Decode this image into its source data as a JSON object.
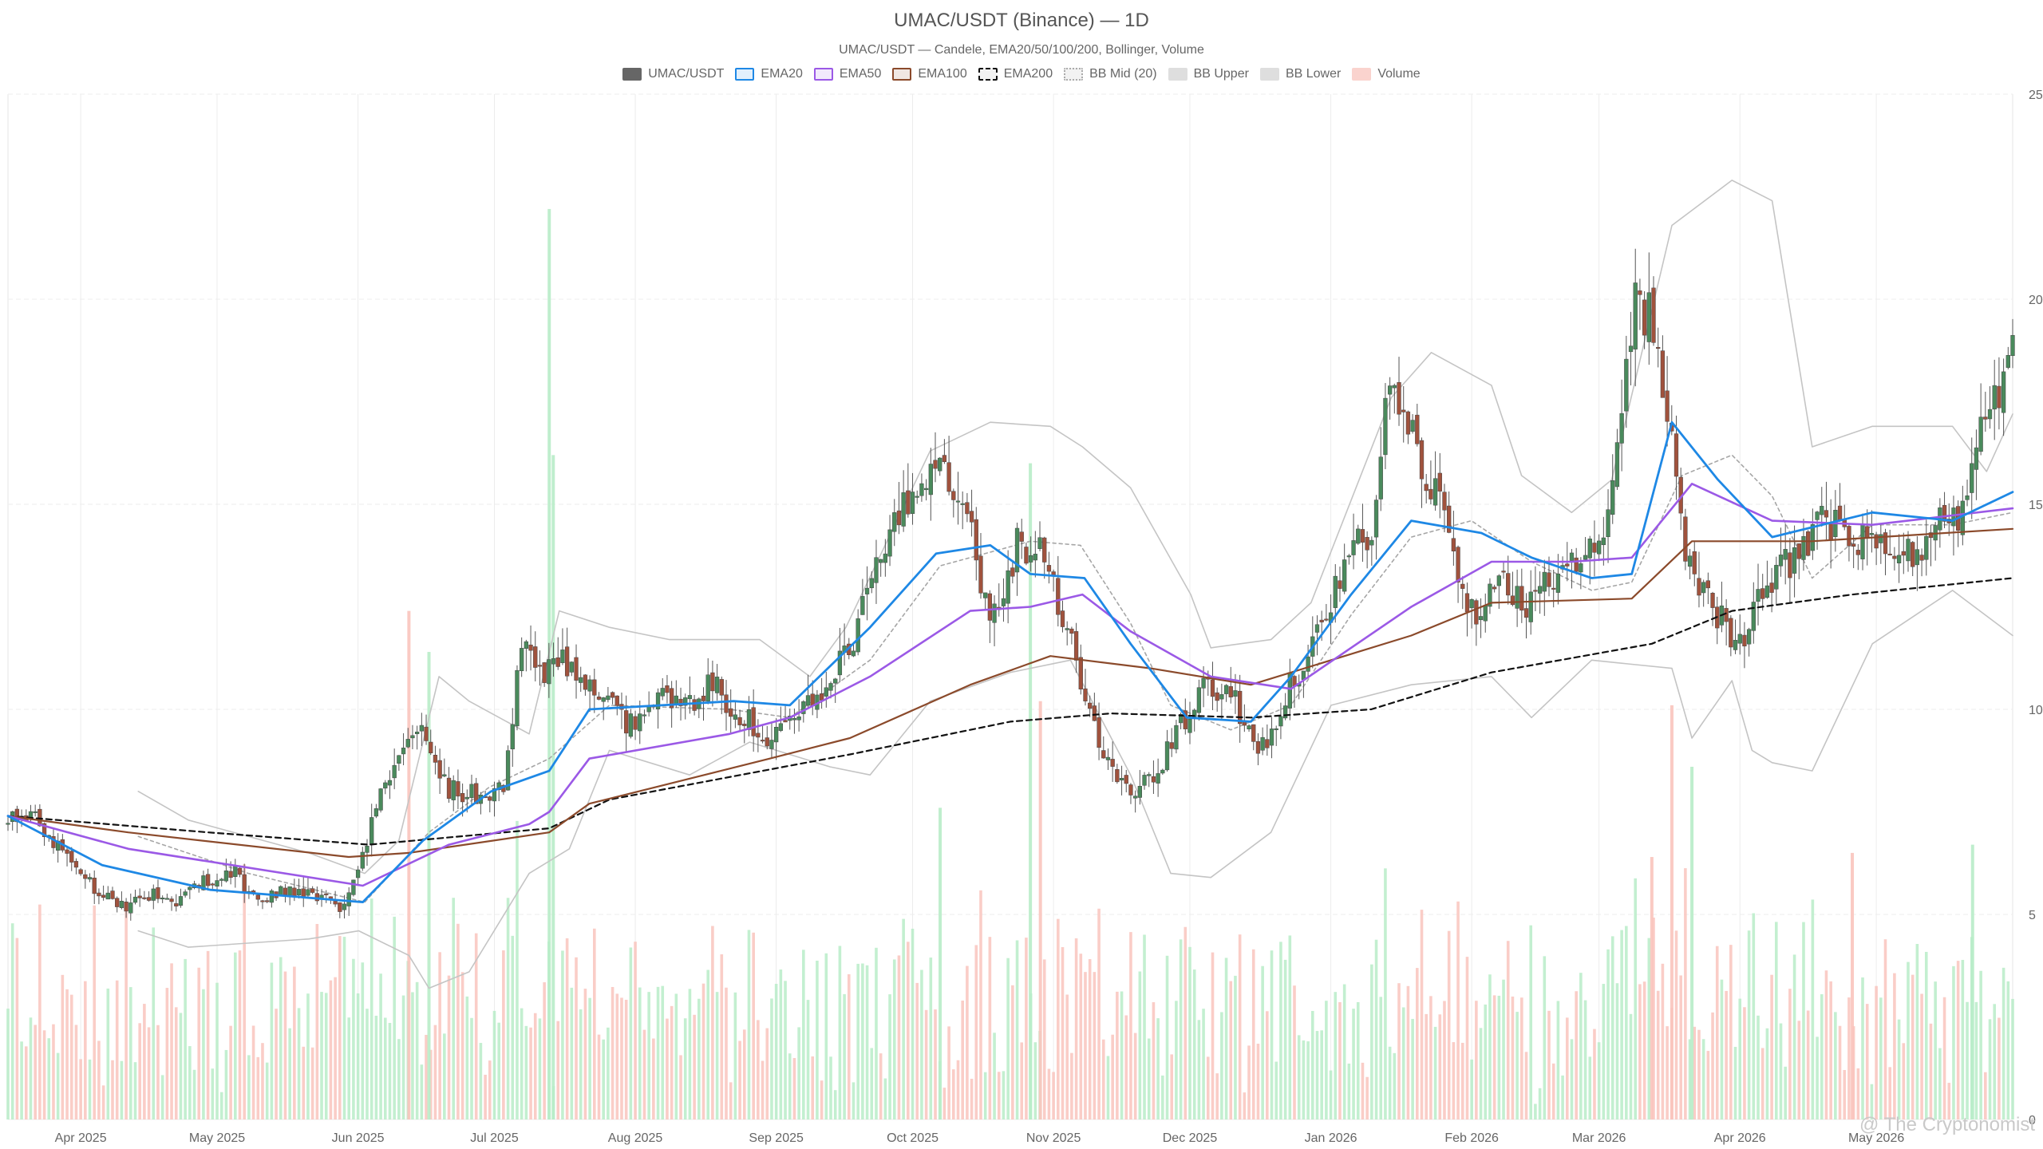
{
  "chart_data": {
    "type": "candlestick",
    "title": "UMAC/USDT (Binance) — 1D",
    "subtitle": "UMAC/USDT — Candele, EMA20/50/100/200, Bollinger, Volume",
    "legend": [
      {
        "label": "UMAC/USDT",
        "color": "#666666",
        "style": "fill"
      },
      {
        "label": "EMA20",
        "color": "#1e88e5",
        "style": "line"
      },
      {
        "label": "EMA50",
        "color": "#9b59e6",
        "style": "line"
      },
      {
        "label": "EMA100",
        "color": "#8b4a2b",
        "style": "line"
      },
      {
        "label": "EMA200",
        "color": "#111111",
        "style": "dashed"
      },
      {
        "label": "BB Mid (20)",
        "color": "#aaaaaa",
        "style": "dotted"
      },
      {
        "label": "BB Upper",
        "color": "#c8c8c8",
        "style": "fill"
      },
      {
        "label": "BB Lower",
        "color": "#c8c8c8",
        "style": "fill"
      },
      {
        "label": "Volume",
        "color": "#f6b5ad",
        "style": "fill"
      }
    ],
    "x_range": [
      "2025-03-16",
      "2026-05-31"
    ],
    "x_ticks": [
      "Apr 2025",
      "May 2025",
      "Jun 2025",
      "Jul 2025",
      "Aug 2025",
      "Sep 2025",
      "Oct 2025",
      "Nov 2025",
      "Dec 2025",
      "Jan 2026",
      "Feb 2026",
      "Mar 2026",
      "Apr 2026",
      "May 2026"
    ],
    "x_tick_dates": [
      "2025-04-01",
      "2025-05-01",
      "2025-06-01",
      "2025-07-01",
      "2025-08-01",
      "2025-09-01",
      "2025-10-01",
      "2025-11-01",
      "2025-12-01",
      "2026-01-01",
      "2026-02-01",
      "2026-03-01",
      "2026-04-01",
      "2026-05-01"
    ],
    "y_axis": {
      "position": "right",
      "ylim": [
        0,
        25
      ],
      "ticks": [
        0,
        5,
        10,
        15,
        20,
        25
      ]
    },
    "grid": true,
    "legend_position": "top-center",
    "colors": {
      "up": "#4a8a5c",
      "down": "#a0523d",
      "volume_up": "#b8ecc8",
      "volume_down": "#f9c4bd",
      "bb": "#bdbdbd"
    },
    "price_path": [
      [
        "2025-03-16",
        7.4
      ],
      [
        "2025-03-22",
        7.3
      ],
      [
        "2025-03-28",
        6.6
      ],
      [
        "2025-04-04",
        5.7
      ],
      [
        "2025-04-10",
        5.2
      ],
      [
        "2025-04-16",
        5.5
      ],
      [
        "2025-04-22",
        5.3
      ],
      [
        "2025-04-28",
        5.8
      ],
      [
        "2025-05-04",
        6.1
      ],
      [
        "2025-05-10",
        5.3
      ],
      [
        "2025-05-16",
        5.6
      ],
      [
        "2025-05-22",
        5.5
      ],
      [
        "2025-05-28",
        5.1
      ],
      [
        "2025-06-03",
        6.9
      ],
      [
        "2025-06-09",
        8.8
      ],
      [
        "2025-06-15",
        9.4
      ],
      [
        "2025-06-21",
        8.1
      ],
      [
        "2025-06-27",
        7.9
      ],
      [
        "2025-07-03",
        8.2
      ],
      [
        "2025-07-07",
        11.6
      ],
      [
        "2025-07-12",
        11.0
      ],
      [
        "2025-07-18",
        11.2
      ],
      [
        "2025-07-24",
        10.3
      ],
      [
        "2025-07-30",
        9.6
      ],
      [
        "2025-08-06",
        10.4
      ],
      [
        "2025-08-12",
        10.0
      ],
      [
        "2025-08-18",
        10.6
      ],
      [
        "2025-08-25",
        9.8
      ],
      [
        "2025-08-31",
        9.2
      ],
      [
        "2025-09-06",
        9.9
      ],
      [
        "2025-09-12",
        10.3
      ],
      [
        "2025-09-18",
        11.8
      ],
      [
        "2025-09-24",
        13.7
      ],
      [
        "2025-09-30",
        15.0
      ],
      [
        "2025-10-06",
        16.3
      ],
      [
        "2025-10-12",
        15.3
      ],
      [
        "2025-10-18",
        12.1
      ],
      [
        "2025-10-24",
        14.0
      ],
      [
        "2025-10-30",
        13.9
      ],
      [
        "2025-11-05",
        11.6
      ],
      [
        "2025-11-11",
        9.1
      ],
      [
        "2025-11-17",
        8.0
      ],
      [
        "2025-11-23",
        8.3
      ],
      [
        "2025-11-29",
        9.6
      ],
      [
        "2025-12-05",
        10.6
      ],
      [
        "2025-12-11",
        10.2
      ],
      [
        "2025-12-17",
        9.0
      ],
      [
        "2025-12-23",
        10.6
      ],
      [
        "2025-12-29",
        11.8
      ],
      [
        "2026-01-04",
        13.6
      ],
      [
        "2026-01-10",
        14.3
      ],
      [
        "2026-01-14",
        18.0
      ],
      [
        "2026-01-20",
        16.3
      ],
      [
        "2026-01-26",
        14.8
      ],
      [
        "2026-02-01",
        12.3
      ],
      [
        "2026-02-07",
        13.5
      ],
      [
        "2026-02-13",
        12.3
      ],
      [
        "2026-02-19",
        13.4
      ],
      [
        "2026-02-25",
        13.5
      ],
      [
        "2026-03-03",
        14.4
      ],
      [
        "2026-03-09",
        20.2
      ],
      [
        "2026-03-14",
        19.1
      ],
      [
        "2026-03-20",
        13.8
      ],
      [
        "2026-03-26",
        12.6
      ],
      [
        "2026-04-01",
        11.5
      ],
      [
        "2026-04-07",
        13.0
      ],
      [
        "2026-04-13",
        13.8
      ],
      [
        "2026-04-19",
        14.6
      ],
      [
        "2026-04-25",
        14.2
      ],
      [
        "2026-05-01",
        14.0
      ],
      [
        "2026-05-07",
        13.6
      ],
      [
        "2026-05-13",
        14.3
      ],
      [
        "2026-05-19",
        14.8
      ],
      [
        "2026-05-25",
        17.0
      ],
      [
        "2026-05-31",
        18.8
      ]
    ],
    "ema20": [
      [
        0,
        7.4
      ],
      [
        0.047,
        6.2
      ],
      [
        0.101,
        5.6
      ],
      [
        0.177,
        5.3
      ],
      [
        0.207,
        6.8
      ],
      [
        0.241,
        8.0
      ],
      [
        0.27,
        8.5
      ],
      [
        0.29,
        10.0
      ],
      [
        0.362,
        10.2
      ],
      [
        0.39,
        10.1
      ],
      [
        0.43,
        12.0
      ],
      [
        0.463,
        13.8
      ],
      [
        0.49,
        14.0
      ],
      [
        0.51,
        13.3
      ],
      [
        0.537,
        13.2
      ],
      [
        0.56,
        11.6
      ],
      [
        0.588,
        9.8
      ],
      [
        0.62,
        9.7
      ],
      [
        0.64,
        10.8
      ],
      [
        0.67,
        12.8
      ],
      [
        0.7,
        14.6
      ],
      [
        0.735,
        14.3
      ],
      [
        0.76,
        13.7
      ],
      [
        0.79,
        13.2
      ],
      [
        0.81,
        13.3
      ],
      [
        0.83,
        17.0
      ],
      [
        0.853,
        15.6
      ],
      [
        0.88,
        14.2
      ],
      [
        0.93,
        14.8
      ],
      [
        0.97,
        14.6
      ],
      [
        1.0,
        15.3
      ]
    ],
    "ema50": [
      [
        0,
        7.4
      ],
      [
        0.06,
        6.6
      ],
      [
        0.177,
        5.7
      ],
      [
        0.22,
        6.7
      ],
      [
        0.26,
        7.2
      ],
      [
        0.27,
        7.5
      ],
      [
        0.29,
        8.8
      ],
      [
        0.36,
        9.4
      ],
      [
        0.39,
        9.8
      ],
      [
        0.43,
        10.8
      ],
      [
        0.48,
        12.4
      ],
      [
        0.51,
        12.5
      ],
      [
        0.536,
        12.8
      ],
      [
        0.56,
        11.9
      ],
      [
        0.6,
        10.8
      ],
      [
        0.64,
        10.5
      ],
      [
        0.7,
        12.5
      ],
      [
        0.74,
        13.6
      ],
      [
        0.78,
        13.6
      ],
      [
        0.81,
        13.7
      ],
      [
        0.84,
        15.5
      ],
      [
        0.88,
        14.6
      ],
      [
        0.93,
        14.5
      ],
      [
        1.0,
        14.9
      ]
    ],
    "ema100": [
      [
        0,
        7.4
      ],
      [
        0.06,
        7.0
      ],
      [
        0.17,
        6.4
      ],
      [
        0.2,
        6.5
      ],
      [
        0.27,
        7.0
      ],
      [
        0.29,
        7.7
      ],
      [
        0.38,
        8.8
      ],
      [
        0.42,
        9.3
      ],
      [
        0.48,
        10.6
      ],
      [
        0.52,
        11.3
      ],
      [
        0.57,
        11.0
      ],
      [
        0.62,
        10.6
      ],
      [
        0.7,
        11.8
      ],
      [
        0.74,
        12.6
      ],
      [
        0.81,
        12.7
      ],
      [
        0.84,
        14.1
      ],
      [
        0.9,
        14.1
      ],
      [
        1.0,
        14.4
      ]
    ],
    "ema200": [
      [
        0,
        7.4
      ],
      [
        0.1,
        7.0
      ],
      [
        0.18,
        6.7
      ],
      [
        0.27,
        7.1
      ],
      [
        0.3,
        7.8
      ],
      [
        0.42,
        8.9
      ],
      [
        0.5,
        9.7
      ],
      [
        0.55,
        9.9
      ],
      [
        0.62,
        9.8
      ],
      [
        0.68,
        10.0
      ],
      [
        0.74,
        10.9
      ],
      [
        0.82,
        11.6
      ],
      [
        0.86,
        12.4
      ],
      [
        0.92,
        12.8
      ],
      [
        1.0,
        13.2
      ]
    ],
    "bb_upper": [
      [
        0.065,
        8.0
      ],
      [
        0.09,
        7.3
      ],
      [
        0.15,
        6.5
      ],
      [
        0.178,
        6.0
      ],
      [
        0.195,
        6.8
      ],
      [
        0.215,
        10.8
      ],
      [
        0.23,
        10.2
      ],
      [
        0.26,
        9.4
      ],
      [
        0.275,
        12.4
      ],
      [
        0.3,
        12.0
      ],
      [
        0.33,
        11.7
      ],
      [
        0.375,
        11.7
      ],
      [
        0.4,
        10.8
      ],
      [
        0.418,
        12.0
      ],
      [
        0.46,
        16.3
      ],
      [
        0.49,
        17.0
      ],
      [
        0.52,
        16.9
      ],
      [
        0.536,
        16.4
      ],
      [
        0.56,
        15.4
      ],
      [
        0.59,
        12.8
      ],
      [
        0.6,
        11.5
      ],
      [
        0.63,
        11.7
      ],
      [
        0.65,
        12.6
      ],
      [
        0.69,
        17.6
      ],
      [
        0.71,
        18.7
      ],
      [
        0.74,
        17.9
      ],
      [
        0.755,
        15.7
      ],
      [
        0.78,
        14.8
      ],
      [
        0.8,
        15.6
      ],
      [
        0.83,
        21.8
      ],
      [
        0.86,
        22.9
      ],
      [
        0.88,
        22.4
      ],
      [
        0.9,
        16.4
      ],
      [
        0.93,
        16.9
      ],
      [
        0.97,
        16.9
      ],
      [
        0.987,
        15.8
      ],
      [
        1.0,
        17.2
      ]
    ],
    "bb_mid": [
      [
        0.065,
        6.9
      ],
      [
        0.12,
        6.0
      ],
      [
        0.178,
        5.3
      ],
      [
        0.21,
        7.0
      ],
      [
        0.24,
        8.1
      ],
      [
        0.27,
        8.8
      ],
      [
        0.3,
        10.1
      ],
      [
        0.36,
        10.0
      ],
      [
        0.39,
        9.8
      ],
      [
        0.43,
        11.2
      ],
      [
        0.465,
        13.5
      ],
      [
        0.51,
        14.1
      ],
      [
        0.535,
        14.0
      ],
      [
        0.56,
        12.1
      ],
      [
        0.58,
        10.1
      ],
      [
        0.61,
        9.5
      ],
      [
        0.64,
        10.1
      ],
      [
        0.67,
        12.3
      ],
      [
        0.7,
        14.2
      ],
      [
        0.73,
        14.6
      ],
      [
        0.76,
        13.6
      ],
      [
        0.79,
        12.9
      ],
      [
        0.81,
        13.1
      ],
      [
        0.835,
        15.7
      ],
      [
        0.86,
        16.2
      ],
      [
        0.88,
        15.2
      ],
      [
        0.9,
        13.2
      ],
      [
        0.93,
        14.5
      ],
      [
        0.97,
        14.5
      ],
      [
        1.0,
        14.8
      ]
    ],
    "bb_lower": [
      [
        0.065,
        4.6
      ],
      [
        0.09,
        4.2
      ],
      [
        0.15,
        4.4
      ],
      [
        0.175,
        4.6
      ],
      [
        0.2,
        4.0
      ],
      [
        0.21,
        3.2
      ],
      [
        0.23,
        3.6
      ],
      [
        0.26,
        6.0
      ],
      [
        0.28,
        6.6
      ],
      [
        0.3,
        9.0
      ],
      [
        0.34,
        8.4
      ],
      [
        0.37,
        9.2
      ],
      [
        0.41,
        8.6
      ],
      [
        0.43,
        8.4
      ],
      [
        0.46,
        10.2
      ],
      [
        0.5,
        10.9
      ],
      [
        0.53,
        11.2
      ],
      [
        0.56,
        8.4
      ],
      [
        0.58,
        6.0
      ],
      [
        0.6,
        5.9
      ],
      [
        0.63,
        7.0
      ],
      [
        0.66,
        10.1
      ],
      [
        0.7,
        10.6
      ],
      [
        0.74,
        10.8
      ],
      [
        0.76,
        9.8
      ],
      [
        0.79,
        11.2
      ],
      [
        0.81,
        11.1
      ],
      [
        0.83,
        11.0
      ],
      [
        0.84,
        9.3
      ],
      [
        0.86,
        10.7
      ],
      [
        0.87,
        9.0
      ],
      [
        0.88,
        8.7
      ],
      [
        0.9,
        8.5
      ],
      [
        0.93,
        11.6
      ],
      [
        0.97,
        12.9
      ],
      [
        1.0,
        11.8
      ]
    ],
    "volume_scale": {
      "max": 22.5,
      "note": "volume shares the price axis visually"
    },
    "volume_peaks": [
      [
        0.27,
        22.2,
        "up"
      ],
      [
        0.272,
        16.2,
        "up"
      ],
      [
        0.2,
        12.4,
        "down"
      ],
      [
        0.21,
        11.4,
        "up"
      ],
      [
        0.51,
        16.0,
        "up"
      ],
      [
        0.515,
        10.2,
        "down"
      ],
      [
        0.83,
        10.1,
        "down"
      ],
      [
        0.84,
        8.6,
        "up"
      ],
      [
        0.465,
        7.6,
        "up"
      ],
      [
        0.82,
        6.4,
        "down"
      ],
      [
        0.92,
        6.5,
        "down"
      ],
      [
        0.98,
        6.7,
        "up"
      ]
    ]
  },
  "watermark": "@ The Cryptonomist"
}
